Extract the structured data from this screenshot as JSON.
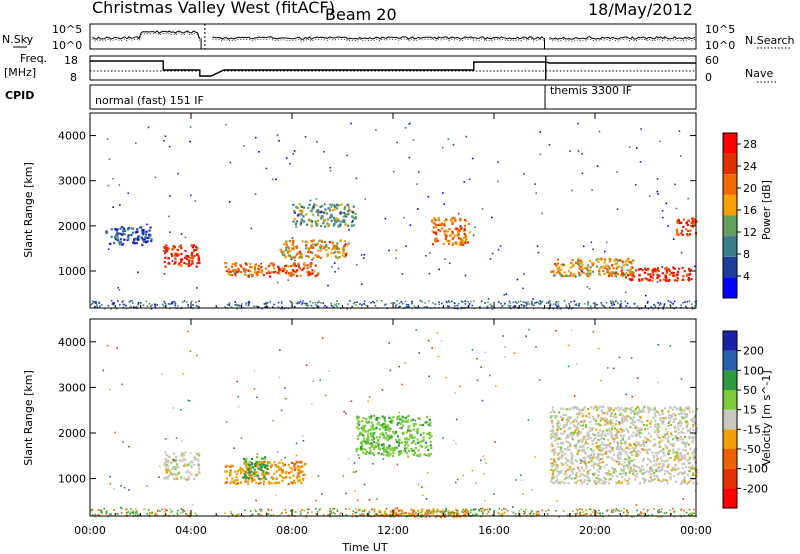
{
  "header": {
    "station": "Christmas Valley West (fitACF)",
    "beam": "Beam 20",
    "date": "18/May/2012"
  },
  "panels": {
    "nsky": {
      "left_label": "N.Sky",
      "right_label": "N.Search",
      "left_ticks": [
        "10^5",
        "10^0"
      ],
      "right_ticks": [
        "10^5",
        "10^0"
      ]
    },
    "freq": {
      "left_label_1": "Freq.",
      "left_label_2": "[MHz]",
      "right_label": "Nave",
      "left_ticks": [
        "18",
        "8"
      ],
      "right_ticks": [
        "60",
        "0"
      ]
    },
    "cpid": {
      "label": "CPID",
      "mode_1": "normal (fast) 151 IF",
      "mode_2": "themis 3300 IF"
    }
  },
  "colors": {
    "power_scale": [
      "#0000ff",
      "#1e3c9a",
      "#3a7d88",
      "#63a060",
      "#f5a000",
      "#f06a00",
      "#e03000",
      "#ff0000"
    ],
    "velocity_scale": [
      "#1a22a8",
      "#2a5fb0",
      "#2e9a40",
      "#7ccc3a",
      "#c8c8c0",
      "#f2a000",
      "#f06000",
      "#e23000",
      "#ff0000"
    ]
  },
  "chart_data": [
    {
      "type": "heatmap",
      "title": "",
      "quantity": "Power",
      "xlabel": "",
      "ylabel": "Slant Range [km]",
      "xlim": [
        0,
        24
      ],
      "ylim": [
        180,
        4500
      ],
      "x_ticks": [
        "00:00",
        "04:00",
        "08:00",
        "12:00",
        "16:00",
        "20:00",
        "00:00"
      ],
      "y_ticks": [
        1000,
        2000,
        3000,
        4000
      ],
      "colorbar": {
        "label": "Power [dB]",
        "ticks": [
          4,
          8,
          12,
          16,
          20,
          24,
          28
        ],
        "range": [
          0,
          30
        ]
      },
      "features": [
        {
          "t_start": 0.6,
          "t_end": 2.4,
          "range_start": 1600,
          "range_end": 2000,
          "value": 6
        },
        {
          "t_start": 2.9,
          "t_end": 4.3,
          "range_start": 1100,
          "range_end": 1600,
          "value": 26
        },
        {
          "t_start": 5.3,
          "t_end": 9.0,
          "range_start": 900,
          "range_end": 1200,
          "value": 22
        },
        {
          "t_start": 7.5,
          "t_end": 10.2,
          "range_start": 1300,
          "range_end": 1700,
          "value": 18
        },
        {
          "t_start": 8.0,
          "t_end": 10.5,
          "range_start": 2000,
          "range_end": 2500,
          "value": 12
        },
        {
          "t_start": 13.5,
          "t_end": 15.0,
          "range_start": 1600,
          "range_end": 2200,
          "value": 20
        },
        {
          "t_start": 18.2,
          "t_end": 21.5,
          "range_start": 900,
          "range_end": 1300,
          "value": 18
        },
        {
          "t_start": 21.0,
          "t_end": 23.8,
          "range_start": 800,
          "range_end": 1100,
          "value": 26
        },
        {
          "t_start": 23.2,
          "t_end": 24.0,
          "range_start": 1800,
          "range_end": 2200,
          "value": 24
        }
      ]
    },
    {
      "type": "heatmap",
      "title": "",
      "quantity": "Velocity",
      "xlabel": "Time UT",
      "ylabel": "Slant Range [km]",
      "xlim": [
        0,
        24
      ],
      "ylim": [
        180,
        4500
      ],
      "x_ticks": [
        "00:00",
        "04:00",
        "08:00",
        "12:00",
        "16:00",
        "20:00",
        "00:00"
      ],
      "y_ticks": [
        1000,
        2000,
        3000,
        4000
      ],
      "colorbar": {
        "label": "Velocity [m s^-1]",
        "ticks": [
          200,
          100,
          50,
          15,
          -15,
          -50,
          -100,
          -200
        ],
        "range": [
          -250,
          250
        ]
      },
      "features": [
        {
          "t_start": 2.9,
          "t_end": 4.3,
          "range_start": 1000,
          "range_end": 1600,
          "value": 0
        },
        {
          "t_start": 5.3,
          "t_end": 8.5,
          "range_start": 900,
          "range_end": 1400,
          "value": -40
        },
        {
          "t_start": 6.0,
          "t_end": 7.0,
          "range_start": 1000,
          "range_end": 1500,
          "value": 60
        },
        {
          "t_start": 10.5,
          "t_end": 13.5,
          "range_start": 1500,
          "range_end": 2400,
          "value": 40
        },
        {
          "t_start": 11.0,
          "t_end": 15.0,
          "range_start": 180,
          "range_end": 350,
          "value": -40
        },
        {
          "t_start": 18.2,
          "t_end": 24.0,
          "range_start": 900,
          "range_end": 2600,
          "value": 0
        }
      ]
    }
  ]
}
